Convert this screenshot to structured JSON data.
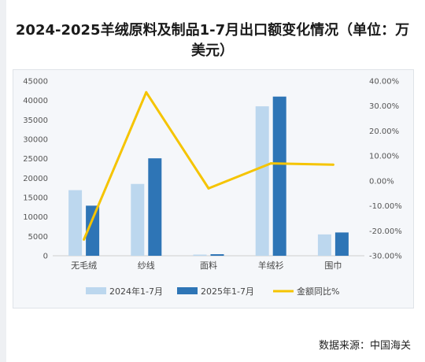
{
  "title": {
    "line1": "2024-2025羊绒原料及制品1-7月出口额变化情况（单位：万",
    "line2": "美元）"
  },
  "source": "数据来源：中国海关",
  "colors": {
    "series_2024": "#bcd7ee",
    "series_2025": "#2e75b6",
    "yoy_line": "#f5c400"
  },
  "chart_data": {
    "type": "bar",
    "categories": [
      "无毛绒",
      "纱线",
      "面料",
      "羊绒衫",
      "围巾"
    ],
    "series": [
      {
        "name": "2024年1-7月",
        "type": "bar",
        "axis": "left",
        "values": [
          16900,
          18500,
          300,
          38500,
          5500
        ]
      },
      {
        "name": "2025年1-7月",
        "type": "bar",
        "axis": "left",
        "values": [
          12900,
          25100,
          400,
          41000,
          6000
        ]
      },
      {
        "name": "金额同比%",
        "type": "line",
        "axis": "right",
        "values": [
          -23.5,
          35.5,
          -3.0,
          7.0,
          6.5
        ]
      }
    ],
    "y_left": {
      "ylim": [
        0,
        45000
      ],
      "ticks": [
        0,
        5000,
        10000,
        15000,
        20000,
        25000,
        30000,
        35000,
        40000,
        45000
      ],
      "tick_labels": [
        "0",
        "5000",
        "10000",
        "15000",
        "20000",
        "25000",
        "30000",
        "35000",
        "40000",
        "45000"
      ]
    },
    "y_right": {
      "ylim": [
        -30,
        40
      ],
      "ticks": [
        -30,
        -20,
        -10,
        0,
        10,
        20,
        30,
        40
      ],
      "tick_labels": [
        "-30.00%",
        "-20.00%",
        "-10.00%",
        "0.00%",
        "10.00%",
        "20.00%",
        "30.00%",
        "40.00%"
      ]
    },
    "grid": false,
    "legend_position": "bottom"
  }
}
